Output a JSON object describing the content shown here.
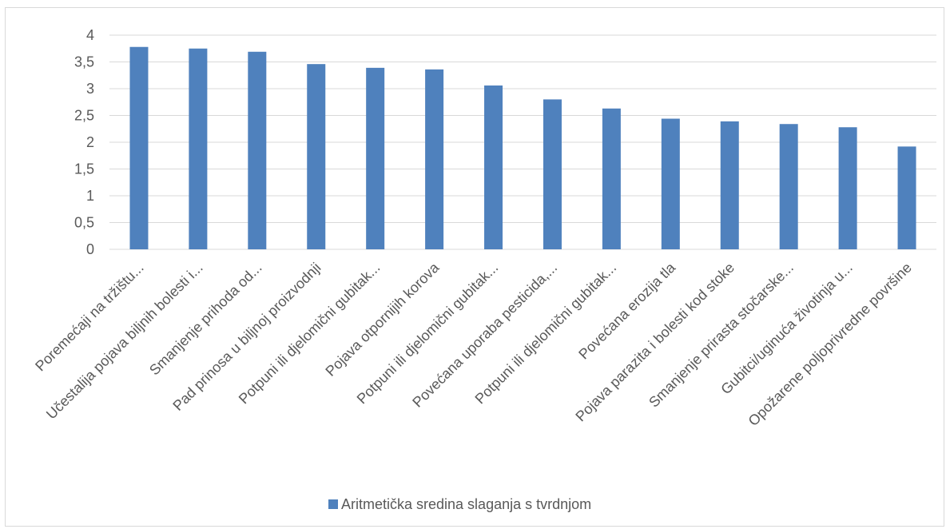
{
  "chart_data": {
    "type": "bar",
    "title": "",
    "xlabel": "",
    "ylabel": "",
    "ylim": [
      0,
      4
    ],
    "yticks": [
      "0",
      "0,5",
      "1",
      "1,5",
      "2",
      "2,5",
      "3",
      "3,5",
      "4"
    ],
    "ytick_values": [
      0,
      0.5,
      1,
      1.5,
      2,
      2.5,
      3,
      3.5,
      4
    ],
    "grid": true,
    "legend_position": "bottom",
    "categories": [
      "Poremećaji na tržištu...",
      "Učestalija pojava biljnih bolesti i...",
      "Smanjenje prihoda od...",
      "Pad prinosa u biljnoj proizvodnji",
      "Potpuni ili djelomični gubitak...",
      "Pojava otpornijih korova",
      "Potpuni ili djelomični gubitak...",
      "Povećana uporaba pesticida,...",
      "Potpuni ili djelomični gubitak...",
      "Povećana erozija tla",
      "Pojava parazita i bolesti kod stoke",
      "Smanjenje prirasta stočarske...",
      "Gubitci/uginuća životinja u...",
      "Opožarene poljoprivredne površine"
    ],
    "series": [
      {
        "name": "Aritmetička sredina slaganja s tvrdnjom",
        "color": "#4f81bd",
        "values": [
          3.78,
          3.75,
          3.69,
          3.46,
          3.39,
          3.36,
          3.06,
          2.8,
          2.63,
          2.44,
          2.39,
          2.34,
          2.28,
          1.92
        ]
      }
    ]
  }
}
